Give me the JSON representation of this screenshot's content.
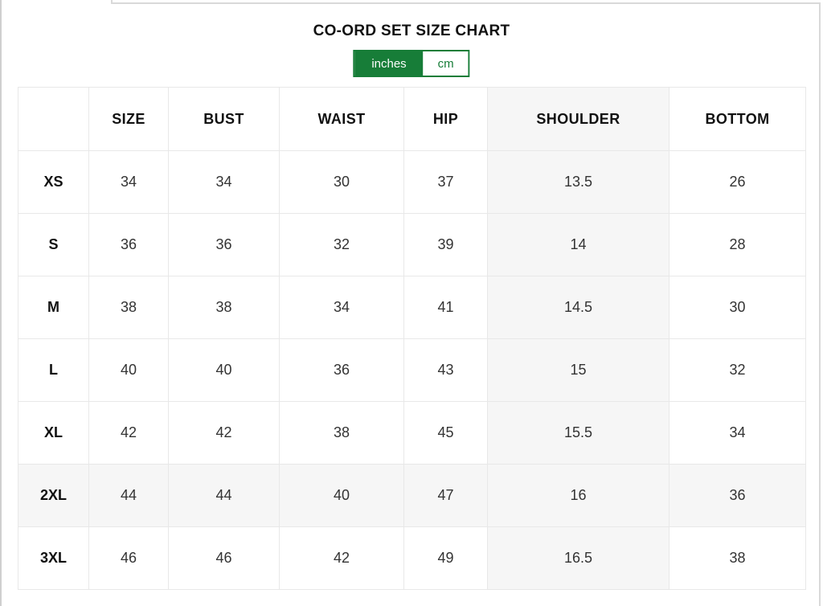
{
  "frame": {
    "title": "CO-ORD SET SIZE CHART"
  },
  "unit_toggle": {
    "active": "inches",
    "options": [
      "inches",
      "cm"
    ]
  },
  "colors": {
    "accent_green": "#177d38",
    "highlight_gray": "#f6f6f6"
  },
  "table": {
    "columns": [
      "",
      "SIZE",
      "BUST",
      "WAIST",
      "HIP",
      "SHOULDER",
      "BOTTOM"
    ],
    "highlighted_column": "SHOULDER",
    "highlighted_row": "2XL",
    "rows": [
      {
        "label": "XS",
        "values": [
          "34",
          "34",
          "30",
          "37",
          "13.5",
          "26"
        ]
      },
      {
        "label": "S",
        "values": [
          "36",
          "36",
          "32",
          "39",
          "14",
          "28"
        ]
      },
      {
        "label": "M",
        "values": [
          "38",
          "38",
          "34",
          "41",
          "14.5",
          "30"
        ]
      },
      {
        "label": "L",
        "values": [
          "40",
          "40",
          "36",
          "43",
          "15",
          "32"
        ]
      },
      {
        "label": "XL",
        "values": [
          "42",
          "42",
          "38",
          "45",
          "15.5",
          "34"
        ]
      },
      {
        "label": "2XL",
        "values": [
          "44",
          "44",
          "40",
          "47",
          "16",
          "36"
        ]
      },
      {
        "label": "3XL",
        "values": [
          "46",
          "46",
          "42",
          "49",
          "16.5",
          "38"
        ]
      }
    ]
  }
}
